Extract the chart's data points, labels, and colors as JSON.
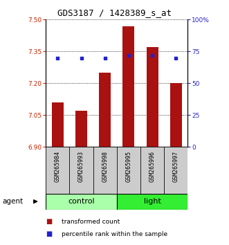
{
  "title": "GDS3187 / 1428389_s_at",
  "samples": [
    "GSM265984",
    "GSM265993",
    "GSM265998",
    "GSM265995",
    "GSM265996",
    "GSM265997"
  ],
  "bar_values": [
    7.11,
    7.07,
    7.25,
    7.47,
    7.37,
    7.2
  ],
  "dot_values": [
    70,
    70,
    70,
    72,
    72,
    70
  ],
  "ylim_left": [
    6.9,
    7.5
  ],
  "ylim_right": [
    0,
    100
  ],
  "yticks_left": [
    6.9,
    7.05,
    7.2,
    7.35,
    7.5
  ],
  "yticks_right": [
    0,
    25,
    50,
    75,
    100
  ],
  "bar_color": "#aa1111",
  "dot_color": "#2222cc",
  "bar_width": 0.5,
  "control_bg": "#cccccc",
  "light_bg": "#cccccc",
  "control_group_color": "#aaffaa",
  "light_group_color": "#33ee33",
  "sample_bg": "#cccccc",
  "left_tick_color": "#cc2200",
  "right_tick_color": "#2222cc",
  "title_fontsize": 9,
  "tick_fontsize": 6.5,
  "sample_fontsize": 6,
  "group_fontsize": 8,
  "legend_fontsize": 6.5,
  "legend_items": [
    "transformed count",
    "percentile rank within the sample"
  ],
  "legend_colors": [
    "#aa1111",
    "#2222cc"
  ]
}
